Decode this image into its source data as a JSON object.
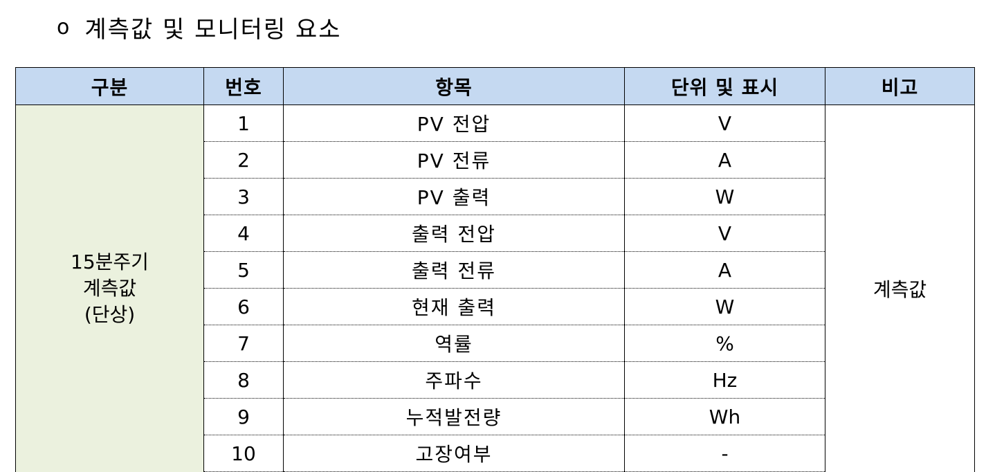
{
  "heading": {
    "bullet": "o",
    "text": "계측값 및 모니터링 요소"
  },
  "table": {
    "headers": [
      "구분",
      "번호",
      "항목",
      "단위 및 표시",
      "비고"
    ],
    "group": {
      "lines": [
        "15분주기",
        "계측값",
        "(단상)"
      ]
    },
    "note": "계측값",
    "rows": [
      {
        "no": "1",
        "item": "PV 전압",
        "unit": "V"
      },
      {
        "no": "2",
        "item": "PV 전류",
        "unit": "A"
      },
      {
        "no": "3",
        "item": "PV 출력",
        "unit": "W"
      },
      {
        "no": "4",
        "item": "출력 전압",
        "unit": "V"
      },
      {
        "no": "5",
        "item": "출력 전류",
        "unit": "A"
      },
      {
        "no": "6",
        "item": "현재 출력",
        "unit": "W"
      },
      {
        "no": "7",
        "item": "역률",
        "unit": "%"
      },
      {
        "no": "8",
        "item": "주파수",
        "unit": "Hz"
      },
      {
        "no": "9",
        "item": "누적발전량",
        "unit": "Wh"
      },
      {
        "no": "10",
        "item": "고장여부",
        "unit": "-"
      }
    ],
    "colors": {
      "header_bg": "#c5d9f1",
      "group_bg": "#ebf1de"
    }
  }
}
